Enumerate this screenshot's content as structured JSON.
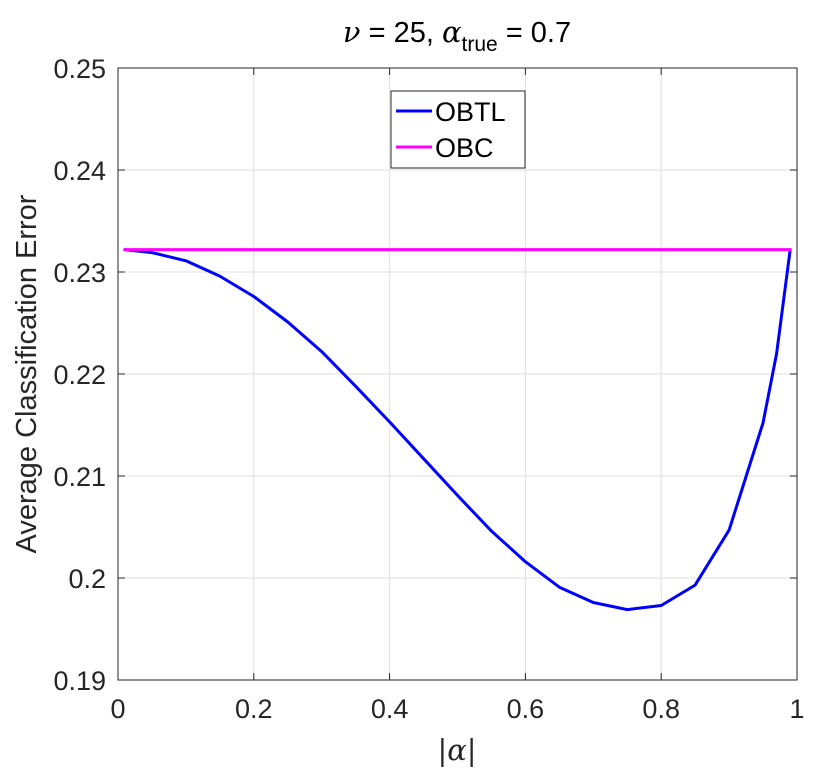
{
  "chart_data": {
    "type": "line",
    "title": {
      "nu_symbol": "ν",
      "nu_text": " = 25, ",
      "alpha_symbol": "α",
      "alpha_subscript": "true",
      "alpha_text": " = 0.7"
    },
    "xlabel": "|α|",
    "ylabel": "Average Classification Error",
    "xlim": [
      0,
      1
    ],
    "ylim": [
      0.19,
      0.25
    ],
    "xticks": [
      "0",
      "0.2",
      "0.4",
      "0.6",
      "0.8",
      "1"
    ],
    "yticks": [
      "0.19",
      "0.2",
      "0.21",
      "0.22",
      "0.23",
      "0.24",
      "0.25"
    ],
    "grid": true,
    "legend_position": "top-center",
    "series": [
      {
        "name": "OBTL",
        "color": "#0000ff",
        "x": [
          0.01,
          0.05,
          0.1,
          0.15,
          0.2,
          0.25,
          0.3,
          0.35,
          0.4,
          0.45,
          0.5,
          0.55,
          0.6,
          0.65,
          0.7,
          0.75,
          0.8,
          0.85,
          0.9,
          0.95,
          0.97,
          0.99
        ],
        "y": [
          0.2322,
          0.2319,
          0.2311,
          0.2296,
          0.2276,
          0.2251,
          0.2222,
          0.2188,
          0.2153,
          0.2117,
          0.2081,
          0.2046,
          0.2016,
          0.1991,
          0.1976,
          0.1969,
          0.1973,
          0.1993,
          0.2047,
          0.2152,
          0.222,
          0.2322
        ]
      },
      {
        "name": "OBC",
        "color": "#ff00ff",
        "x": [
          0.01,
          0.99
        ],
        "y": [
          0.2322,
          0.2322
        ]
      }
    ]
  }
}
